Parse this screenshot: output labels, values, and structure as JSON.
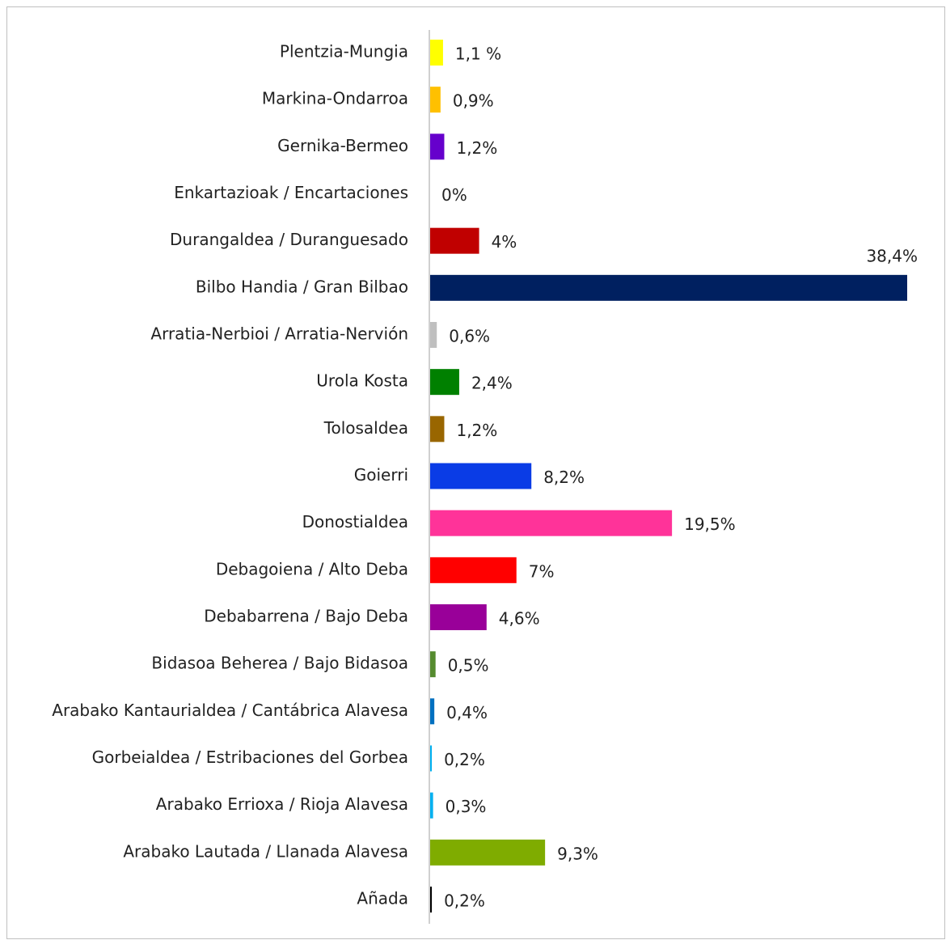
{
  "chart_data": {
    "type": "hbar",
    "categories": [
      "Plentzia-Mungia",
      "Markina-Ondarroa",
      "Gernika-Bermeo",
      "Enkartazioak / Encartaciones",
      "Durangaldea / Duranguesado",
      "Bilbo Handia / Gran Bilbao",
      "Arratia-Nerbioi / Arratia-Nervión",
      "Urola Kosta",
      "Tolosaldea",
      "Goierri",
      "Donostialdea",
      "Debagoiena / Alto Deba",
      "Debabarrena / Bajo Deba",
      "Bidasoa Beherea / Bajo Bidasoa",
      "Arabako Kantaurialdea / Cantábrica Alavesa",
      "Gorbeialdea / Estribaciones del Gorbea",
      "Arabako Errioxa / Rioja Alavesa",
      "Arabako Lautada / Llanada Alavesa",
      "Añada"
    ],
    "values": [
      1.1,
      0.9,
      1.2,
      0,
      4,
      38.4,
      0.6,
      2.4,
      1.2,
      8.2,
      19.5,
      7,
      4.6,
      0.5,
      0.4,
      0.2,
      0.3,
      9.3,
      0.2
    ],
    "value_labels": [
      "1,1 %",
      "0,9%",
      "1,2%",
      "0%",
      "4%",
      "38,4%",
      "0,6%",
      "2,4%",
      "1,2%",
      "8,2%",
      "19,5%",
      "7%",
      "4,6%",
      "0,5%",
      "0,4%",
      "0,2%",
      "0,3%",
      "9,3%",
      "0,2%"
    ],
    "colors": [
      "#ffff00",
      "#ffc000",
      "#6600cc",
      "#ffffff",
      "#c00000",
      "#002060",
      "#bfbfbf",
      "#008000",
      "#996600",
      "#0a3ce6",
      "#ff3399",
      "#ff0000",
      "#990099",
      "#558b2f",
      "#0070c0",
      "#00b0f0",
      "#00b0f0",
      "#7fac00",
      "#000000"
    ]
  }
}
